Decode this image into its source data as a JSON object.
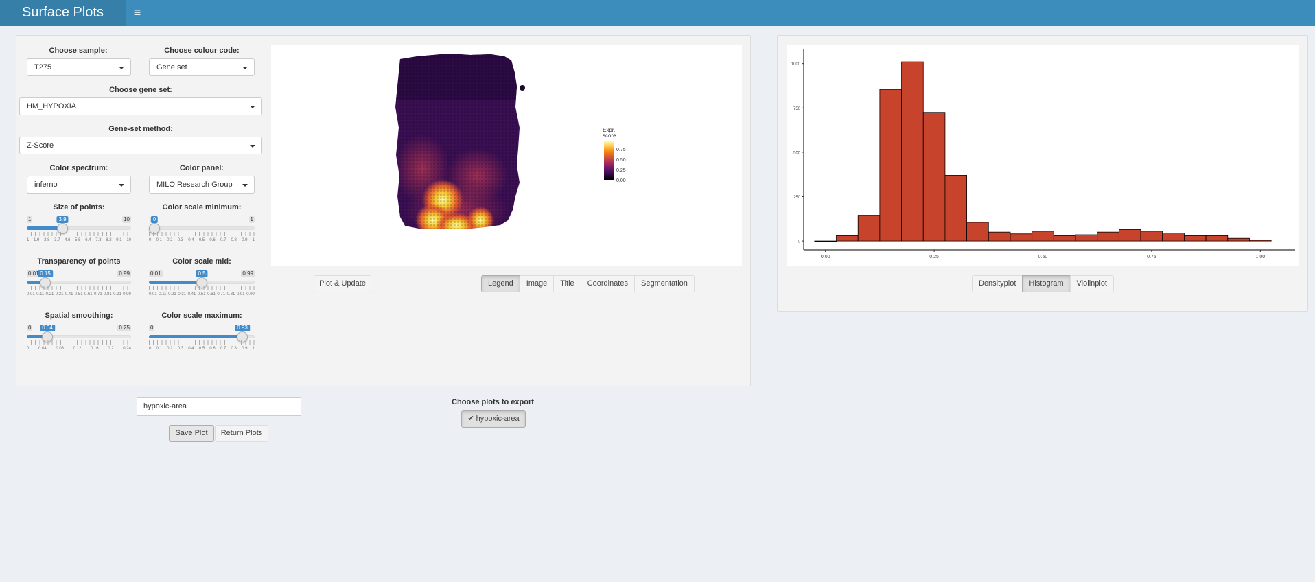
{
  "app": {
    "title": "Surface Plots",
    "menu_icon": "hamburger-icon"
  },
  "controls": {
    "sample": {
      "label": "Choose sample:",
      "value": "T275"
    },
    "colour_code": {
      "label": "Choose colour code:",
      "value": "Gene set"
    },
    "gene_set": {
      "label": "Choose gene set:",
      "value": "HM_HYPOXIA"
    },
    "gene_set_method": {
      "label": "Gene-set method:",
      "value": "Z-Score"
    },
    "color_spectrum": {
      "label": "Color spectrum:",
      "value": "inferno"
    },
    "color_panel": {
      "label": "Color panel:",
      "value": "MILO Research Group"
    }
  },
  "sliders": {
    "size": {
      "label": "Size of points:",
      "min": "1",
      "max": "10",
      "value": "3.9",
      "fraction": 0.322,
      "ticks": [
        "1",
        "1.9",
        "2.8",
        "3.7",
        "4.6",
        "5.5",
        "6.4",
        "7.3",
        "8.2",
        "9.1",
        "10"
      ]
    },
    "csmin": {
      "label": "Color scale minimum:",
      "min": "",
      "max": "1",
      "value": "0",
      "fraction": 0.0,
      "ticks": [
        "0",
        "0.1",
        "0.2",
        "0.3",
        "0.4",
        "0.5",
        "0.6",
        "0.7",
        "0.8",
        "0.9",
        "1"
      ]
    },
    "transp": {
      "label": "Transparency of points",
      "min": "0.01",
      "max": "0.99",
      "value": "0.15",
      "fraction": 0.143,
      "ticks": [
        "0.01",
        "0.11",
        "0.21",
        "0.31",
        "0.41",
        "0.51",
        "0.61",
        "0.71",
        "0.81",
        "0.91",
        "0.99"
      ]
    },
    "csmid": {
      "label": "Color scale mid:",
      "min": "0.01",
      "max": "0.99",
      "value": "0.5",
      "fraction": 0.5,
      "ticks": [
        "0.01",
        "0.11",
        "0.21",
        "0.31",
        "0.41",
        "0.51",
        "0.61",
        "0.71",
        "0.81",
        "0.91",
        "0.99"
      ]
    },
    "smooth": {
      "label": "Spatial smoothing:",
      "min": "0",
      "max": "0.25",
      "value": "0.04",
      "fraction": 0.16,
      "ticks": [
        "0",
        "0.04",
        "0.08",
        "0.12",
        "0.16",
        "0.2",
        "0.24"
      ]
    },
    "csmax": {
      "label": "Color scale maximum:",
      "min": "0",
      "max": "",
      "value": "0.93",
      "fraction": 0.93,
      "ticks": [
        "0",
        "0.1",
        "0.2",
        "0.3",
        "0.4",
        "0.5",
        "0.6",
        "0.7",
        "0.8",
        "0.9",
        "1"
      ]
    }
  },
  "surface_plot": {
    "legend_title": "Expr.\nscore",
    "legend_ticks": [
      "0.75",
      "0.50",
      "0.25",
      "0.00"
    ]
  },
  "buttons": {
    "plot_update": "Plot & Update",
    "save_plot": "Save Plot",
    "return_plots": "Return Plots"
  },
  "view_tabs": [
    "Legend",
    "Image",
    "Title",
    "Coordinates",
    "Segmentation"
  ],
  "view_tabs_active": "Legend",
  "dist_tabs": [
    "Densityplot",
    "Histogram",
    "Violinplot"
  ],
  "dist_tabs_active": "Histogram",
  "export": {
    "name_value": "hypoxic-area",
    "label": "Choose plots to export",
    "checked_item": "hypoxic-area"
  },
  "chart_data": {
    "type": "bar",
    "title": "",
    "xlabel": "",
    "ylabel": "",
    "bin_start": -0.025,
    "bin_width": 0.05,
    "values": [
      0,
      30,
      145,
      855,
      1010,
      725,
      370,
      105,
      50,
      40,
      55,
      30,
      35,
      50,
      65,
      55,
      45,
      30,
      30,
      15,
      5
    ],
    "xlim": [
      -0.05,
      1.08
    ],
    "ylim": [
      -50,
      1080
    ],
    "xticks": [
      "0.00",
      "0.25",
      "0.50",
      "0.75",
      "1.00"
    ],
    "xtick_values": [
      0,
      0.25,
      0.5,
      0.75,
      1.0
    ],
    "yticks": [
      "0",
      "250",
      "500",
      "750",
      "1000"
    ],
    "ytick_values": [
      0,
      250,
      500,
      750,
      1000
    ],
    "bar_color": "#c8432b",
    "grid": false
  }
}
